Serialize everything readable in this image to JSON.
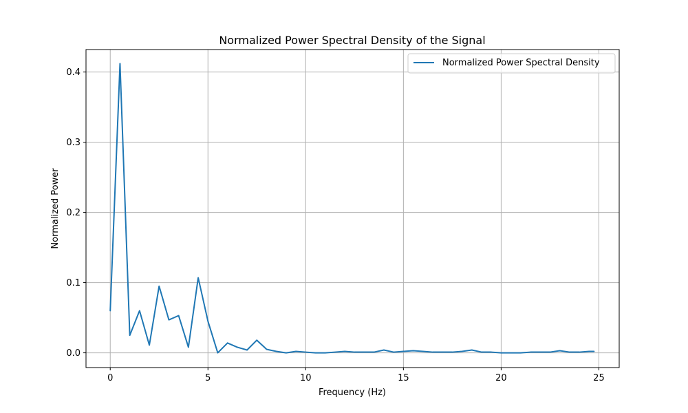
{
  "chart_data": {
    "type": "line",
    "title": "Normalized Power Spectral Density of the Signal",
    "xlabel": "Frequency (Hz)",
    "ylabel": "Normalized Power",
    "xlim": [
      -1.24,
      26.04
    ],
    "ylim": [
      -0.021,
      0.432
    ],
    "x_ticks": [
      0,
      5,
      10,
      15,
      20,
      25
    ],
    "x_tick_labels": [
      "0",
      "5",
      "10",
      "15",
      "20",
      "25"
    ],
    "y_ticks": [
      0.0,
      0.1,
      0.2,
      0.3,
      0.4
    ],
    "y_tick_labels": [
      "0.0",
      "0.1",
      "0.2",
      "0.3",
      "0.4"
    ],
    "grid": true,
    "legend_position": "top-right",
    "series": [
      {
        "name": "Normalized Power Spectral Density",
        "color": "#1f77b4",
        "x": [
          0.0,
          0.5,
          1.0,
          1.5,
          2.0,
          2.5,
          3.0,
          3.5,
          4.0,
          4.5,
          5.0,
          5.5,
          6.0,
          6.5,
          7.0,
          7.5,
          8.0,
          8.5,
          9.0,
          9.5,
          10.0,
          10.5,
          11.0,
          11.5,
          12.0,
          12.5,
          13.0,
          13.5,
          14.0,
          14.5,
          15.0,
          15.5,
          16.0,
          16.5,
          17.0,
          17.5,
          18.0,
          18.5,
          19.0,
          19.5,
          20.0,
          20.5,
          21.0,
          21.5,
          22.0,
          22.5,
          23.0,
          23.5,
          24.0,
          24.5,
          24.75
        ],
        "y": [
          0.06,
          0.412,
          0.025,
          0.06,
          0.011,
          0.095,
          0.047,
          0.053,
          0.008,
          0.107,
          0.045,
          0.0,
          0.014,
          0.008,
          0.004,
          0.018,
          0.005,
          0.002,
          0.0,
          0.002,
          0.001,
          0.0,
          0.0,
          0.001,
          0.002,
          0.001,
          0.001,
          0.001,
          0.004,
          0.001,
          0.002,
          0.003,
          0.002,
          0.001,
          0.001,
          0.001,
          0.002,
          0.004,
          0.001,
          0.001,
          0.0,
          0.0,
          0.0,
          0.001,
          0.001,
          0.001,
          0.003,
          0.001,
          0.001,
          0.002,
          0.002
        ]
      }
    ]
  }
}
